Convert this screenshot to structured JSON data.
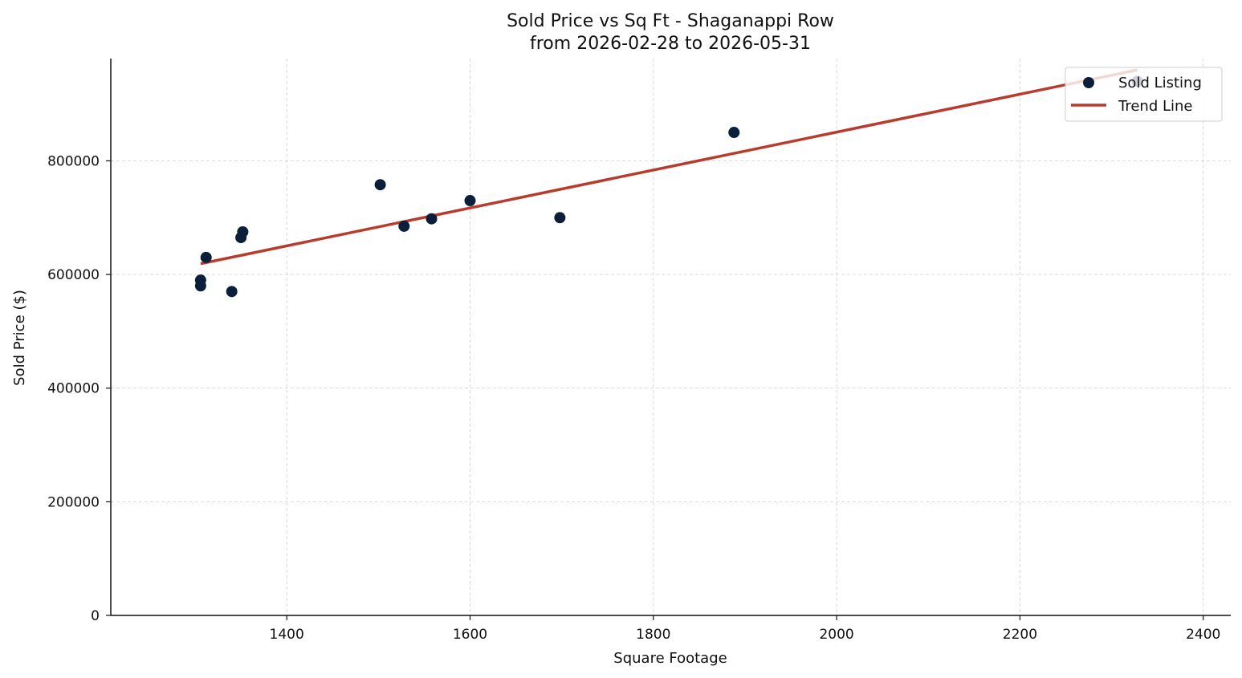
{
  "chart_data": {
    "type": "scatter",
    "title": "Sold Price vs Sq Ft - Shaganappi Row",
    "subtitle": "from 2026-02-28 to 2026-05-31",
    "xlabel": "Square Footage",
    "ylabel": "Sold Price ($)",
    "xlim": [
      1208,
      2430
    ],
    "ylim": [
      0,
      980000
    ],
    "xticks": [
      1400,
      1600,
      1800,
      2000,
      2200,
      2400
    ],
    "yticks": [
      0,
      200000,
      400000,
      600000,
      800000
    ],
    "grid": true,
    "legend_position": "top-right",
    "series": [
      {
        "name": "Sold Listing",
        "kind": "scatter",
        "color": "#0b1f3a",
        "x": [
          1306,
          1306,
          1312,
          1340,
          1350,
          1352,
          1502,
          1528,
          1558,
          1600,
          1698,
          1888,
          2328
        ],
        "y": [
          590000,
          580000,
          630000,
          570000,
          665000,
          675000,
          758000,
          685000,
          698000,
          730000,
          700000,
          850000,
          940000
        ]
      },
      {
        "name": "Trend Line",
        "kind": "line",
        "color": "#b83c2e",
        "x": [
          1306,
          2328
        ],
        "y": [
          619000,
          960000
        ]
      }
    ]
  }
}
